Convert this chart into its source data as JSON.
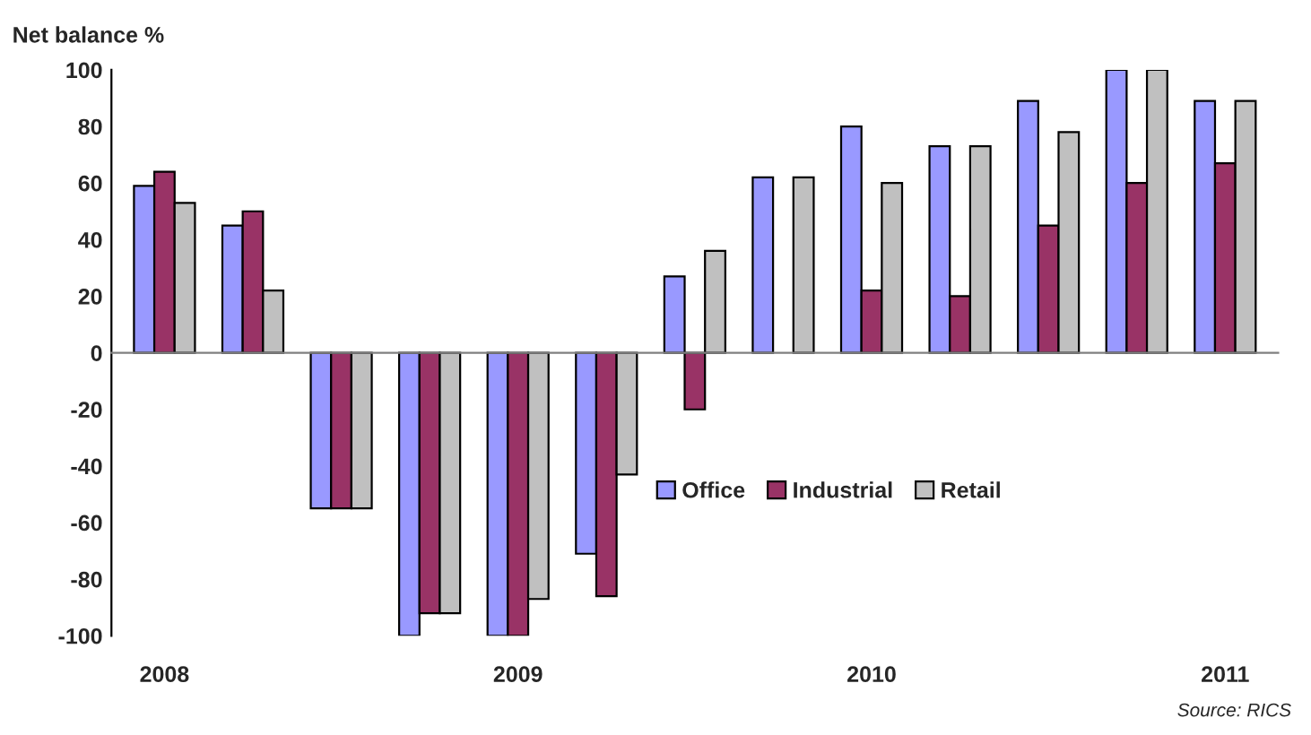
{
  "chart_data": {
    "type": "bar",
    "ylabel": "Net balance %",
    "categories": [
      "2008",
      null,
      null,
      null,
      "2009",
      null,
      null,
      null,
      "2010",
      null,
      null,
      null,
      "2011"
    ],
    "series": [
      {
        "name": "Office",
        "color": "#9999ff",
        "values": [
          59,
          45,
          -55,
          -100,
          -100,
          -71,
          27,
          62,
          80,
          73,
          89,
          100,
          89
        ]
      },
      {
        "name": "Industrial",
        "color": "#993366",
        "values": [
          64,
          50,
          -55,
          -92,
          -100,
          -86,
          -20,
          null,
          22,
          20,
          45,
          60,
          67
        ]
      },
      {
        "name": "Retail",
        "color": "#c0c0c0",
        "values": [
          53,
          22,
          -55,
          -92,
          -87,
          -43,
          36,
          62,
          60,
          73,
          78,
          100,
          89
        ]
      }
    ],
    "ylim": [
      -100,
      100
    ],
    "yticks": [
      -100,
      -80,
      -60,
      -40,
      -20,
      0,
      20,
      40,
      60,
      80,
      100
    ],
    "legend": "bottom right",
    "annotations": [
      "Source: RICS"
    ]
  }
}
